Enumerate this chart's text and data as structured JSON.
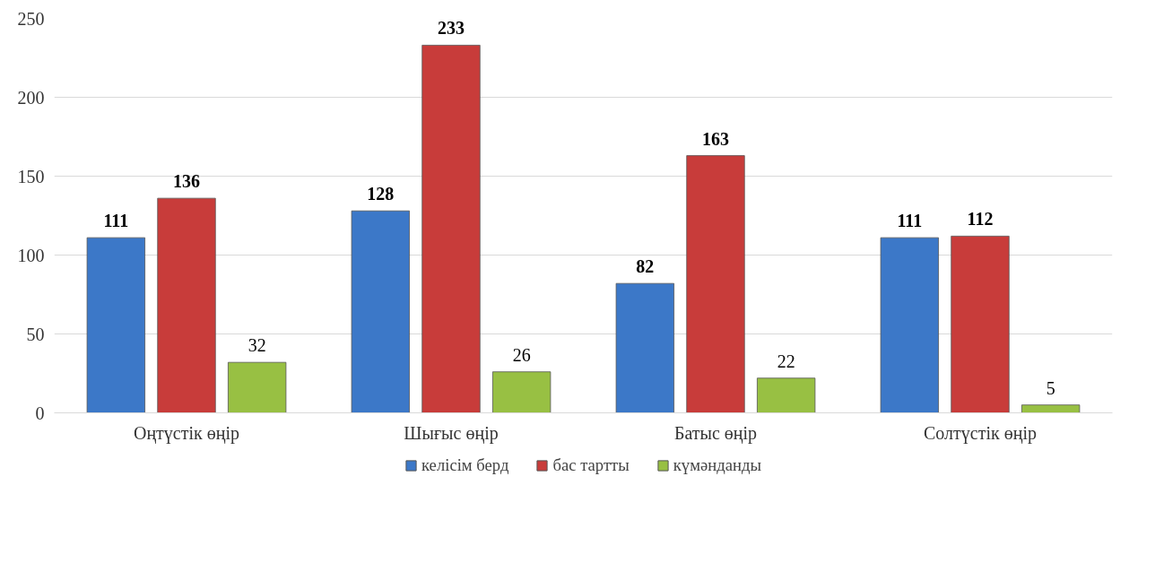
{
  "chart_data": {
    "type": "bar",
    "categories": [
      "Оңтүстік өңір",
      "Шығыс өңір",
      "Батыс өңір",
      "Солтүстік өңір"
    ],
    "series": [
      {
        "name": "келісім берд",
        "color": "#3c78c8",
        "values": [
          111,
          128,
          82,
          111
        ]
      },
      {
        "name": "бас тартты",
        "color": "#c83c3a",
        "values": [
          136,
          233,
          163,
          112
        ]
      },
      {
        "name": "күмәнданды",
        "color": "#98c043",
        "values": [
          32,
          26,
          22,
          5
        ]
      }
    ],
    "ylim": [
      0,
      250
    ],
    "yticks": [
      0,
      50,
      100,
      150,
      200,
      250
    ],
    "grid": "y",
    "legend": "bottom",
    "data_labels": true
  }
}
